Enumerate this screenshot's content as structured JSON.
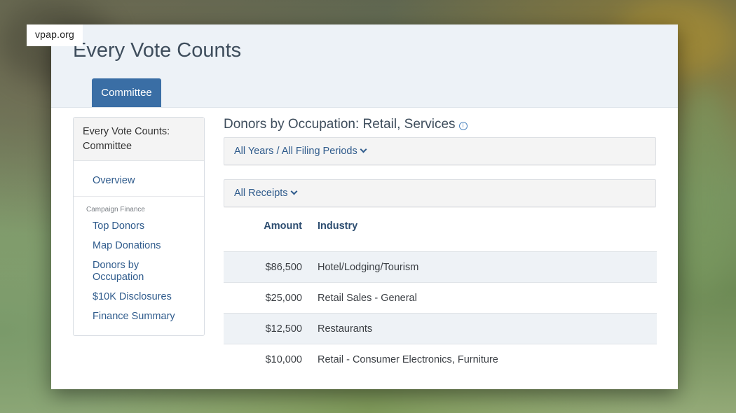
{
  "overlay": {
    "source": "vpap.org"
  },
  "header": {
    "title": "Every Vote Counts",
    "tabs": [
      {
        "label": "Committee"
      }
    ]
  },
  "sidebar": {
    "entity": "Every Vote Counts: Committee",
    "overview": "Overview",
    "section_label": "Campaign Finance",
    "links": [
      {
        "label": "Top Donors"
      },
      {
        "label": "Map Donations"
      },
      {
        "label": "Donors by Occupation"
      },
      {
        "label": "$10K Disclosures"
      },
      {
        "label": "Finance Summary"
      }
    ]
  },
  "main": {
    "heading": "Donors by Occupation: Retail, Services",
    "info_icon": "info-icon",
    "filters": {
      "period": "All Years / All Filing Periods",
      "receipts": "All Receipts"
    },
    "table": {
      "columns": [
        "Amount",
        "Industry"
      ],
      "rows": [
        {
          "amount": "$86,500",
          "industry": "Hotel/Lodging/Tourism"
        },
        {
          "amount": "$25,000",
          "industry": "Retail Sales - General"
        },
        {
          "amount": "$12,500",
          "industry": "Restaurants"
        },
        {
          "amount": "$10,000",
          "industry": "Retail - Consumer Electronics, Furniture"
        }
      ]
    }
  },
  "colors": {
    "accent": "#3a6ea5",
    "link": "#2f5b8c",
    "header_bg": "#edf2f7",
    "row_alt": "#eef2f6"
  }
}
